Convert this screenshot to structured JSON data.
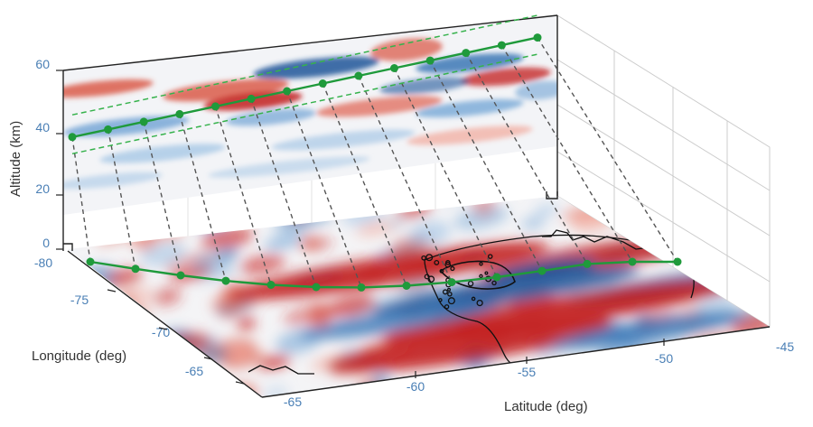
{
  "chart_data": {
    "type": "3d-surface-with-vertical-curtain",
    "xlabel": "Latitude (deg)",
    "ylabel": "Longitude (deg)",
    "zlabel": "Altitude (km)",
    "x_ticks": [
      "-60",
      "-55",
      "-50",
      "-45"
    ],
    "y_ticks": [
      "-80",
      "-75",
      "-70",
      "-65"
    ],
    "x_corner_tick": "-65",
    "z_ticks": [
      "0",
      "20",
      "40",
      "60"
    ],
    "xlim": [
      -65,
      -45
    ],
    "ylim": [
      -80,
      -62
    ],
    "zlim": [
      0,
      65
    ],
    "colormap": "blue-white-red diverging",
    "curtain_altitude_range_km": [
      20,
      60
    ],
    "track_altitude_km": 41,
    "track_altitude_end_km": 57,
    "track_band_offset_km": 6,
    "track_points": 14,
    "colors": {
      "track": "#1f9a3b",
      "band": "#36b24c",
      "dropline": "#555555",
      "box": "#222222",
      "grid": "#c8c8c8",
      "tick": "#4a7fb5",
      "coast": "#111111"
    }
  }
}
